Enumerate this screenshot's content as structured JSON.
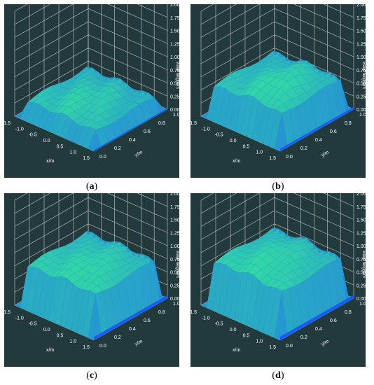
{
  "chart_data": [
    {
      "type": "surface",
      "caption": "a",
      "x_ticks": [
        "-1.5",
        "-1.0",
        "-0.5",
        "0.0",
        "0.5",
        "1.0",
        "1.5"
      ],
      "y_ticks": [
        "0.0",
        "0.2",
        "0.4",
        "0.6",
        "0.8",
        "1.0"
      ],
      "z_ticks": [
        "0.00",
        "0.25",
        "0.50",
        "0.75",
        "1.00",
        "1.25",
        "1.50",
        "1.75",
        "2.00"
      ],
      "xlabel": "x/m",
      "ylabel": "y/m",
      "zlabel": "wave height/m",
      "xlim": [
        -1.5,
        1.5
      ],
      "ylim": [
        0,
        1.0
      ],
      "zlim": [
        0,
        2.0
      ],
      "surface_height": 0.25,
      "surface_bump": 0.12,
      "bump_x": 0.0
    },
    {
      "type": "surface",
      "caption": "b",
      "x_ticks": [
        "-1.5",
        "-1.0",
        "-0.5",
        "0.0",
        "0.5",
        "1.0",
        "1.5"
      ],
      "y_ticks": [
        "0.0",
        "0.2",
        "0.4",
        "0.6",
        "0.8",
        "1.0"
      ],
      "z_ticks": [
        "0.00",
        "0.25",
        "0.50",
        "0.75",
        "1.00",
        "1.25",
        "1.50",
        "1.75",
        "2.00"
      ],
      "xlabel": "x/m",
      "ylabel": "y/m",
      "zlabel": "wave height/m",
      "xlim": [
        -1.5,
        1.5
      ],
      "ylim": [
        0,
        1.0
      ],
      "zlim": [
        0,
        2.0
      ],
      "surface_height": 0.55,
      "surface_bump": 0.3,
      "bump_x": 0.3
    },
    {
      "type": "surface",
      "caption": "c",
      "x_ticks": [
        "-1.5",
        "-1.0",
        "-0.5",
        "0.0",
        "0.5",
        "1.0",
        "1.5"
      ],
      "y_ticks": [
        "0.0",
        "0.2",
        "0.4",
        "0.6",
        "0.8",
        "1.0"
      ],
      "z_ticks": [
        "0.00",
        "0.25",
        "0.50",
        "0.75",
        "1.00",
        "1.25",
        "1.50",
        "1.75",
        "2.00"
      ],
      "xlabel": "x/m",
      "ylabel": "y/m",
      "zlabel": "wave height/m",
      "xlim": [
        -1.5,
        1.5
      ],
      "ylim": [
        0,
        1.0
      ],
      "zlim": [
        0,
        2.0
      ],
      "surface_height": 0.72,
      "surface_bump": 0.18,
      "bump_x": 0.2
    },
    {
      "type": "surface",
      "caption": "d",
      "x_ticks": [
        "-1.5",
        "-1.0",
        "-0.5",
        "0.0",
        "0.5",
        "1.0",
        "1.5"
      ],
      "y_ticks": [
        "0.0",
        "0.2",
        "0.4",
        "0.6",
        "0.8",
        "1.0"
      ],
      "z_ticks": [
        "0.00",
        "0.25",
        "0.50",
        "0.75",
        "1.00",
        "1.25",
        "1.50",
        "1.75",
        "2.00"
      ],
      "xlabel": "x/m",
      "ylabel": "y/m",
      "zlabel": "wave height/m",
      "xlim": [
        -1.5,
        1.5
      ],
      "ylim": [
        0,
        1.0
      ],
      "zlim": [
        0,
        2.0
      ],
      "surface_height": 0.78,
      "surface_bump": 0.22,
      "bump_x": 0.0
    }
  ],
  "colors": {
    "background": "#233a3d",
    "grid": "#c8c8c8",
    "surface_high": "#33e0a0",
    "surface_low": "#1a52ff"
  }
}
